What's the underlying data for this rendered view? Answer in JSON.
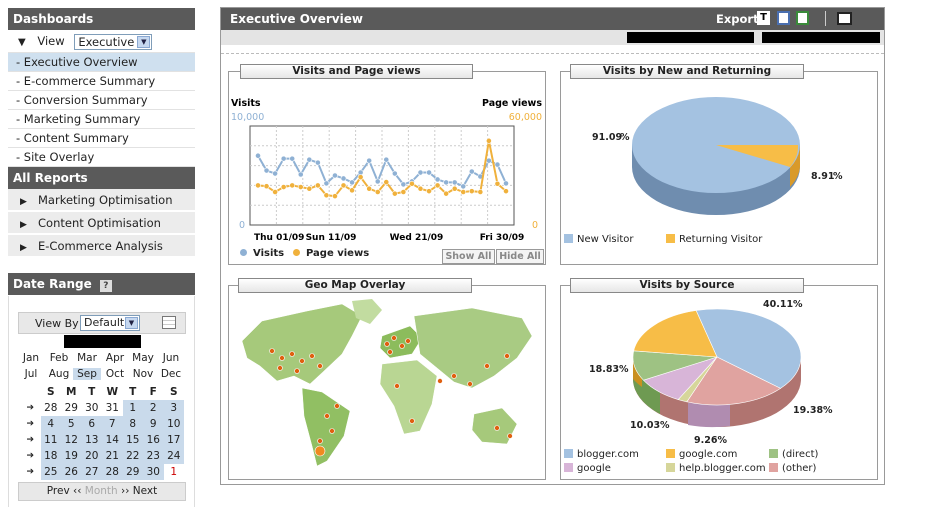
{
  "sidebar": {
    "dashboards_header": "Dashboards",
    "view_label": "View",
    "view_value": "Executive",
    "items": [
      {
        "label": "- Executive Overview"
      },
      {
        "label": "- E-commerce Summary"
      },
      {
        "label": "- Conversion Summary"
      },
      {
        "label": "- Marketing Summary"
      },
      {
        "label": "- Content Summary"
      },
      {
        "label": "- Site Overlay"
      }
    ],
    "reports_header": "All Reports",
    "reports": [
      {
        "label": "Marketing Optimisation"
      },
      {
        "label": "Content Optimisation"
      },
      {
        "label": "E-Commerce Analysis"
      }
    ]
  },
  "date_range": {
    "header": "Date Range",
    "help": "?",
    "view_by_label": "View By",
    "view_by_value": "Default",
    "months_row1": [
      "Jan",
      "Feb",
      "Mar",
      "Apr",
      "May",
      "Jun"
    ],
    "months_row2": [
      "Jul",
      "Aug",
      "Sep",
      "Oct",
      "Nov",
      "Dec"
    ],
    "weekdays": [
      "S",
      "M",
      "T",
      "W",
      "T",
      "F",
      "S"
    ],
    "weeks": [
      [
        "28",
        "29",
        "30",
        "31",
        "1",
        "2",
        "3"
      ],
      [
        "4",
        "5",
        "6",
        "7",
        "8",
        "9",
        "10"
      ],
      [
        "11",
        "12",
        "13",
        "14",
        "15",
        "16",
        "17"
      ],
      [
        "18",
        "19",
        "20",
        "21",
        "22",
        "23",
        "24"
      ],
      [
        "25",
        "26",
        "27",
        "28",
        "29",
        "30",
        "1"
      ]
    ],
    "nav_prev": "Prev",
    "nav_month": "Month",
    "nav_next": "Next"
  },
  "header": {
    "title": "Executive Overview",
    "export_label": "Export"
  },
  "panels": {
    "visits": {
      "title": "Visits and Page views",
      "show_all": "Show All",
      "hide_all": "Hide All"
    },
    "new_returning": {
      "title": "Visits by New and Returning"
    },
    "geo": {
      "title": "Geo Map Overlay"
    },
    "source": {
      "title": "Visits by Source"
    }
  },
  "colors": {
    "visits": "#8fb1d4",
    "pageviews": "#f0b13c",
    "blogger": "#a4c2e1",
    "google_com": "#f7bd47",
    "direct": "#9ec283",
    "google": "#d8b5d8",
    "help_blogger": "#d6d69a",
    "other": "#e0a3a0",
    "returning": "#f7bd47",
    "new": "#a4c2e1"
  },
  "chart_data": [
    {
      "type": "line",
      "title": "Visits and Page views",
      "x_ticks": [
        "Thu 01/09",
        "Sun 11/09",
        "Wed 21/09",
        "Fri 30/09"
      ],
      "left_axis": {
        "label": "Visits",
        "max_label": "10,000",
        "min_label": "0",
        "range": [
          0,
          10000
        ]
      },
      "right_axis": {
        "label": "Page views",
        "max_label": "60,000",
        "min_label": "0",
        "range": [
          0,
          60000
        ]
      },
      "series": [
        {
          "name": "Visits",
          "axis": "left",
          "values": [
            7000,
            5500,
            5200,
            6700,
            6700,
            5100,
            6600,
            6300,
            4200,
            5000,
            4700,
            4300,
            5300,
            6500,
            4400,
            6600,
            5200,
            4100,
            4400,
            5300,
            5300,
            4600,
            4300,
            4300,
            3900,
            5400,
            4900,
            6500,
            6100,
            4200
          ]
        },
        {
          "name": "Page views",
          "axis": "right",
          "values": [
            24000,
            23500,
            20000,
            23000,
            24000,
            23000,
            22000,
            24000,
            18000,
            17500,
            24000,
            21000,
            29000,
            22000,
            20000,
            26000,
            19000,
            20000,
            25000,
            22000,
            20500,
            24000,
            19000,
            22000,
            20000,
            20500,
            20000,
            51000,
            25000,
            20500
          ]
        }
      ]
    },
    {
      "type": "pie",
      "title": "Visits by New and Returning",
      "slices": [
        {
          "label": "New Visitor",
          "value": 91.09
        },
        {
          "label": "Returning Visitor",
          "value": 8.91
        }
      ]
    },
    {
      "type": "pie",
      "title": "Visits by Source",
      "slices": [
        {
          "label": "blogger.com",
          "value": 40.11
        },
        {
          "label": "(other)",
          "value": 19.38
        },
        {
          "label": "help.blogger.com",
          "value": 1.8
        },
        {
          "label": "google",
          "value": 9.26
        },
        {
          "label": "(direct)",
          "value": 10.03
        },
        {
          "label": "google.com",
          "value": 18.83
        }
      ],
      "value_labels": [
        "40.11%",
        "19.38%",
        "9.26%",
        "10.03%",
        "18.83%"
      ],
      "legend": [
        "blogger.com",
        "google.com",
        "(direct)",
        "google",
        "help.blogger.com",
        "(other)"
      ]
    }
  ]
}
